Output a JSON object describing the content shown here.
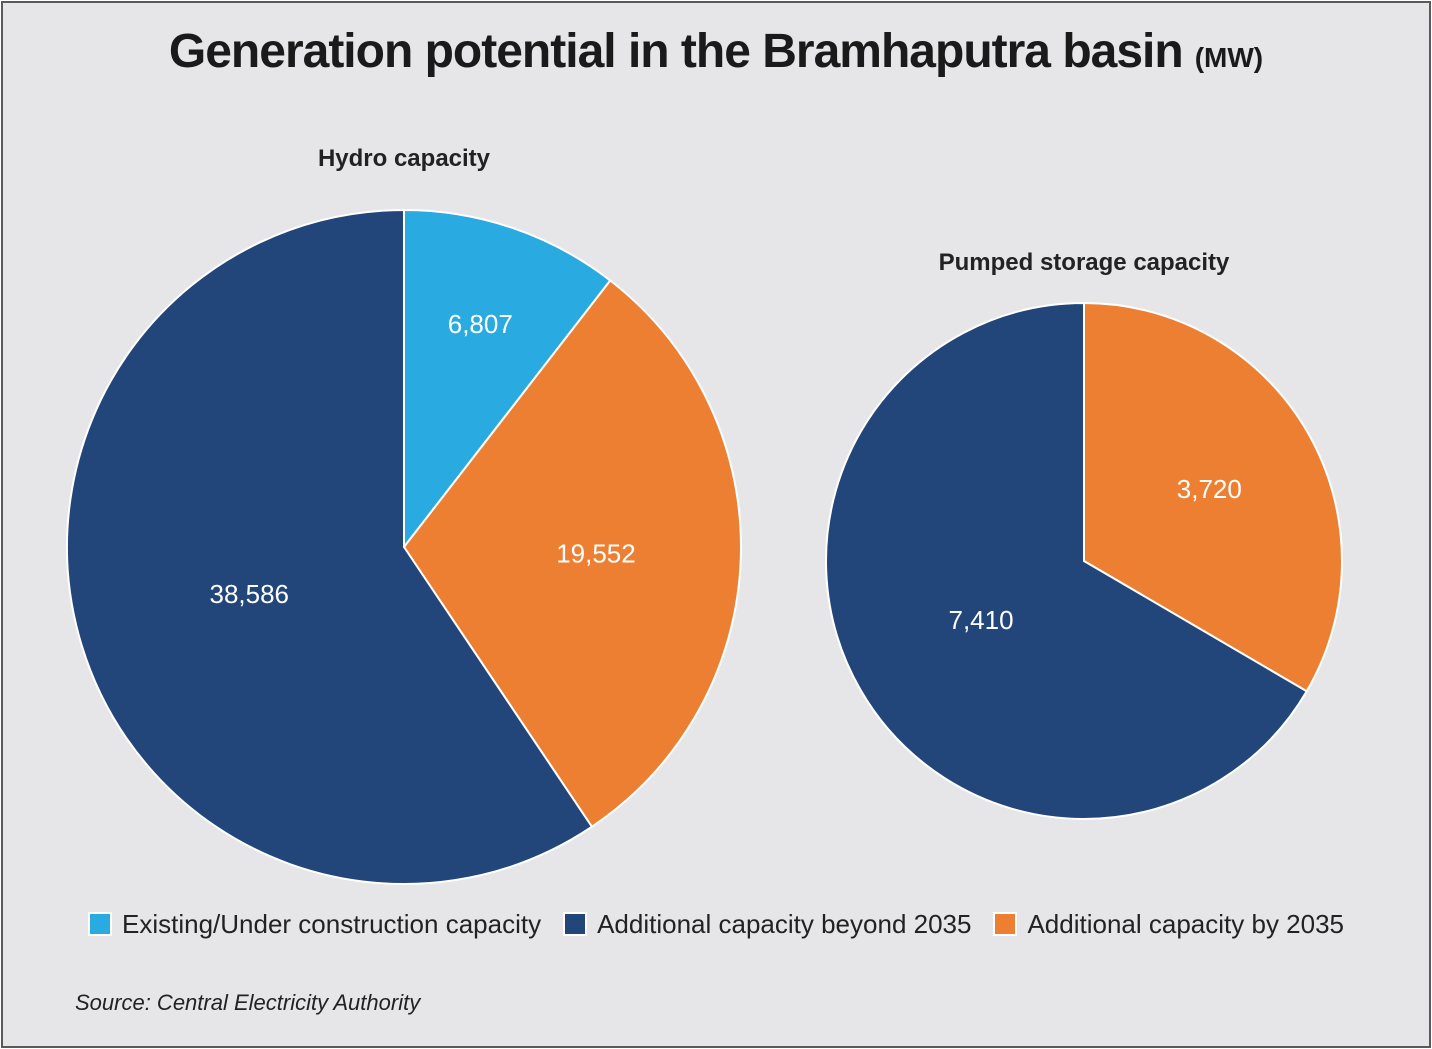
{
  "chart_data": [
    {
      "type": "pie",
      "title": "Hydro capacity",
      "unit": "MW",
      "slices": [
        {
          "label": "Existing/Under construction capacity",
          "value": 6807,
          "display": "6,807",
          "color": "#29abe2"
        },
        {
          "label": "Additional capacity by 2035",
          "value": 19552,
          "display": "19,552",
          "color": "#ed7f33"
        },
        {
          "label": "Additional capacity beyond 2035",
          "value": 38586,
          "display": "38,586",
          "color": "#23467a"
        }
      ]
    },
    {
      "type": "pie",
      "title": "Pumped storage capacity",
      "unit": "MW",
      "slices": [
        {
          "label": "Additional capacity by 2035",
          "value": 3720,
          "display": "3,720",
          "color": "#ed7f33"
        },
        {
          "label": "Additional capacity beyond 2035",
          "value": 7410,
          "display": "7,410",
          "color": "#23467a"
        }
      ]
    }
  ],
  "title": "Generation potential in the Bramhaputra basin",
  "title_unit": "(MW)",
  "legend": [
    {
      "label": "Existing/Under construction capacity",
      "color": "#29abe2"
    },
    {
      "label": "Additional capacity beyond 2035",
      "color": "#23467a"
    },
    {
      "label": "Additional capacity by 2035",
      "color": "#ed7f33"
    }
  ],
  "source": "Source: Central Electricity Authority"
}
